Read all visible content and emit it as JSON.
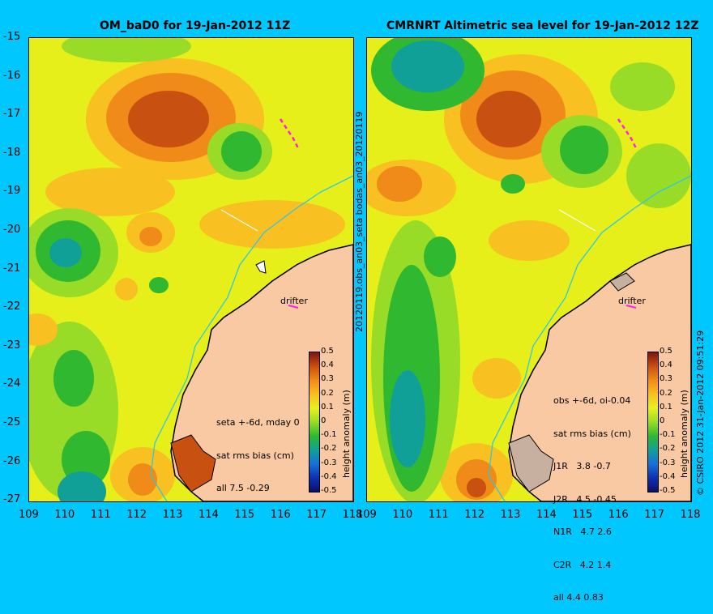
{
  "left_panel": {
    "title": "OM_baD0 for 19-Jan-2012 11Z",
    "stats_lines": [
      "seta +-6d, mday 0",
      "sat rms bias (cm)",
      "all 7.5 -0.29"
    ],
    "drifter_label": "drifter"
  },
  "right_panel": {
    "title": "CMRNRT Altimetric sea level  for 19-Jan-2012 12Z",
    "stats_lines": [
      "obs +-6d, oi-0.04",
      "sat rms bias (cm)",
      "J1R   3.8 -0.7",
      "J2R   4.5 -0.45",
      "N1R   4.7 2.6",
      "C2R   4.2 1.4",
      "all 4.4 0.83"
    ],
    "drifter_label": "drifter"
  },
  "axes": {
    "y_ticks": [
      "-15",
      "-16",
      "-17",
      "-18",
      "-19",
      "-20",
      "-21",
      "-22",
      "-23",
      "-24",
      "-25",
      "-26",
      "-27"
    ],
    "x_ticks": [
      "109",
      "110",
      "111",
      "112",
      "113",
      "114",
      "115",
      "116",
      "117",
      "118"
    ]
  },
  "middle_vertical_label": "20120119.obs_an03_seta      bodas_an03_20120119",
  "colorbar": {
    "label": "height anomaly  (m)",
    "ticks": [
      "0.5",
      "0.4",
      "0.3",
      "0.2",
      "0.1",
      "0",
      "-0.1",
      "-0.2",
      "-0.3",
      "-0.4",
      "-0.5"
    ],
    "colors": [
      "#7a1410",
      "#c85010",
      "#f08a18",
      "#f8c020",
      "#e8f020",
      "#98dc28",
      "#30b830",
      "#10a098",
      "#1870d8",
      "#1030b0",
      "#081070"
    ]
  },
  "copyright": "© CSIRO 2012   31-Jan-2012 09:51:29",
  "palette": {
    "background": "#00c8fe",
    "land": "#f8c9a2",
    "coast_bathymetry": "#30c8e0",
    "drifter_arrow": "#ff20e0"
  }
}
